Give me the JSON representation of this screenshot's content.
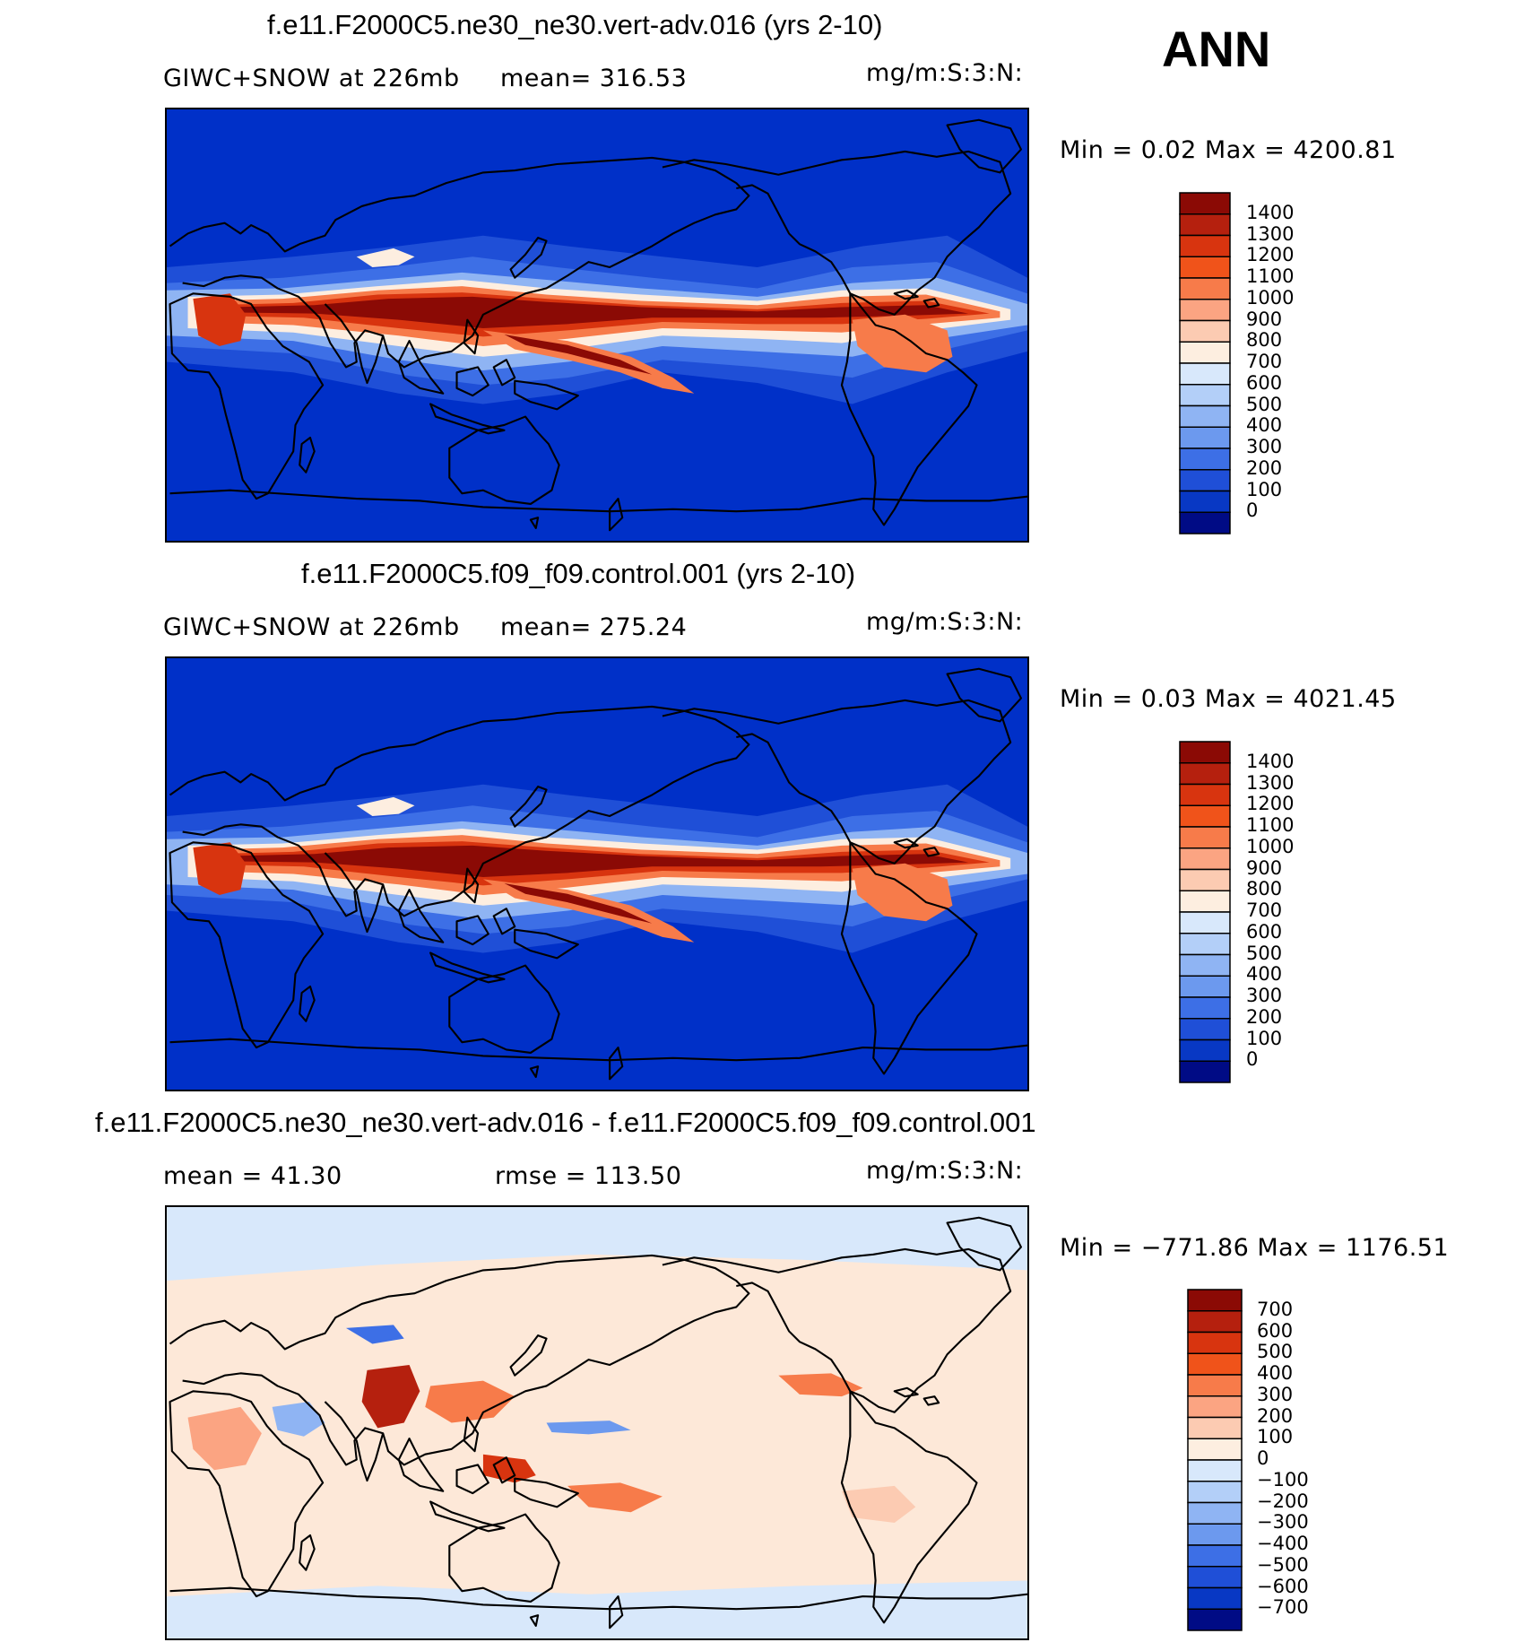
{
  "page_label": "ANN",
  "panels": [
    {
      "title": "f.e11.F2000C5.ne30_ne30.vert-adv.016 (yrs 2-10)",
      "left_text": "GIWC+SNOW at 226mb",
      "stat_text": "mean= 316.53",
      "units": "mg/m:S:3:N:",
      "minmax": "Min =    0.02 Max = 4200.81",
      "background": "#0030c8"
    },
    {
      "title": "f.e11.F2000C5.f09_f09.control.001 (yrs 2-10)",
      "left_text": "GIWC+SNOW at 226mb",
      "stat_text": "mean= 275.24",
      "units": "mg/m:S:3:N:",
      "minmax": "Min =    0.03 Max = 4021.45",
      "background": "#0030c8"
    },
    {
      "title": "f.e11.F2000C5.ne30_ne30.vert-adv.016 - f.e11.F2000C5.f09_f09.control.001",
      "left_text": "mean =   41.30",
      "stat_text": "rmse = 113.50",
      "units": "mg/m:S:3:N:",
      "minmax": "Min = −771.86 Max = 1176.51",
      "background": "#fde8d8"
    }
  ],
  "legend_abs": {
    "labels": [
      "1400",
      "1300",
      "1200",
      "1100",
      "1000",
      "900",
      "800",
      "700",
      "600",
      "500",
      "400",
      "300",
      "200",
      "100",
      "0"
    ],
    "colors": [
      "#8b0a05",
      "#b5200e",
      "#d8340f",
      "#f0531a",
      "#f77b4a",
      "#fba482",
      "#fccbb2",
      "#fdeee0",
      "#d8e8fb",
      "#b3cff8",
      "#8fb4f3",
      "#6c99ee",
      "#3d6fe6",
      "#1f4fd7",
      "#0838c4",
      "#000b85"
    ]
  },
  "legend_diff": {
    "labels": [
      "700",
      "600",
      "500",
      "400",
      "300",
      "200",
      "100",
      "0",
      "−100",
      "−200",
      "−300",
      "−400",
      "−500",
      "−600",
      "−700"
    ],
    "colors": [
      "#8b0a05",
      "#b5200e",
      "#d8340f",
      "#f0531a",
      "#f77b4a",
      "#fba482",
      "#fccbb2",
      "#fdeee0",
      "#d8e8fb",
      "#b3cff8",
      "#8fb4f3",
      "#6c99ee",
      "#3d6fe6",
      "#1f4fd7",
      "#0838c4",
      "#000b85"
    ]
  }
}
